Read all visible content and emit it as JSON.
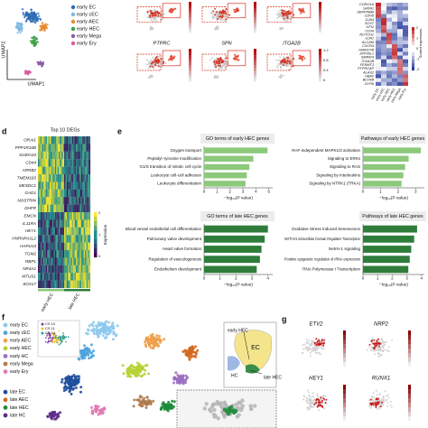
{
  "panels": {
    "a": {
      "legend": [
        {
          "name": "early EC",
          "color": "#2f6db5"
        },
        {
          "name": "early cEC",
          "color": "#7ab8e6"
        },
        {
          "name": "early AEC",
          "color": "#e8892c"
        },
        {
          "name": "early HEC",
          "color": "#3ca24a"
        },
        {
          "name": "early Mega",
          "color": "#8d5aa6"
        },
        {
          "name": "early Ery",
          "color": "#d95b9c"
        }
      ],
      "x_label": "UMAP1",
      "y_label": "UMAP2"
    },
    "b": {
      "genes": [
        "PTPRC",
        "SPN",
        "ITGA2B"
      ],
      "colorbar_labels": [
        "1.2",
        "0.8",
        "0.4",
        "0"
      ]
    },
    "c": {
      "genes": [
        "CORO1A",
        "GATA1",
        "SERPINB9",
        "CDH5",
        "GJA4",
        "SOX7",
        "GFI1",
        "CD34",
        "NOTCH1",
        "GJA1",
        "ALCAM",
        "CXCR4",
        "FAM107B",
        "ZFP36L1",
        "SMIM24",
        "ITGA2B",
        "FERMT3",
        "PTPRCAP",
        "ALAS2",
        "HBA2",
        "BLVRB",
        "GYPA"
      ],
      "columns": [
        "early EC",
        "early cEC",
        "early AEC",
        "early HEC",
        "early Mega",
        "early Ery"
      ],
      "scale_label": "Scaled expression",
      "scale_ticks": [
        "2",
        "1",
        "0",
        "-1",
        "-2"
      ]
    },
    "d": {
      "letter": "d",
      "title": "Top 10 DEGs",
      "genes": [
        "ORAI1",
        "PPP1R16B",
        "S100A10",
        "CD44",
        "ARRB2",
        "TMEM163",
        "MESDC1",
        "GAD1",
        "NOSTRIN",
        "DHFR",
        "EMCN",
        "IL11RA",
        "HEY1",
        "HNRNPA1L2",
        "HAPLN3",
        "TGM2",
        "RBP1",
        "NR4A1",
        "MTUS1",
        "SOX17"
      ],
      "groups": [
        "early HEC",
        "late HEC"
      ],
      "scale_label": "Expression",
      "scale_ticks": [
        "2",
        "1",
        "0"
      ]
    },
    "e": {
      "letter": "e"
    },
    "f": {
      "letter": "f",
      "legend": [
        {
          "name": "early EC",
          "color": "#8ec9ee"
        },
        {
          "name": "early cEC",
          "color": "#4da3dd"
        },
        {
          "name": "early AEC",
          "color": "#f0a04b"
        },
        {
          "name": "early HEC",
          "color": "#b5d334"
        },
        {
          "name": "early HC",
          "color": "#9b6fc0"
        },
        {
          "name": "early Mega",
          "color": "#b07a4f"
        },
        {
          "name": "early Ery",
          "color": "#e07bb5"
        },
        {
          "name": "late EC",
          "color": "#1f4e9c"
        },
        {
          "name": "late AEC",
          "color": "#d2691e"
        },
        {
          "name": "late HEC",
          "color": "#1e8a3c"
        },
        {
          "name": "late HC",
          "color": "#5b2d8a"
        }
      ],
      "inset_legend": [
        {
          "name": "CS 10",
          "color": "#7b3fa0"
        },
        {
          "name": "CS 11",
          "color": "#f2c12e"
        },
        {
          "name": "CS 13",
          "color": "#2e9e8f"
        }
      ],
      "schematic": [
        "early HEC",
        "EC",
        "HC",
        "late HEC"
      ]
    },
    "g": {
      "letter": "g",
      "genes": [
        "ETV2",
        "NRP2",
        "HEY1",
        "RUNX1"
      ]
    }
  },
  "chart_data": [
    {
      "type": "bar",
      "orientation": "horizontal",
      "title": "GO terms of early HEC genes",
      "categories": [
        "Oxygen transport",
        "Peptidyl−tyrosine modification",
        "G1/S transition of mitotic cell cycle",
        "Leukocyte cell-cell adhesion",
        "Leukocyte differentiation"
      ],
      "values": [
        4.9,
        3.8,
        3.5,
        3.3,
        3.2
      ],
      "color": "#8cc97a",
      "xlim": [
        0,
        5.3
      ],
      "xticks": [
        0,
        1,
        2,
        3,
        4,
        5
      ],
      "xlabel": "−log₁₀(P value)"
    },
    {
      "type": "bar",
      "orientation": "horizontal",
      "title": "Pathways of early HEC genes",
      "categories": [
        "RAF-independent MAPK1/3 activation",
        "Signaling to ERKs",
        "Signaling to RAS",
        "Signaling by Interleukins",
        "Signaling by NTRK1 (TRKA)"
      ],
      "values": [
        3.3,
        2.6,
        2.4,
        2.3,
        2.2
      ],
      "color": "#8cc97a",
      "xlim": [
        0,
        3.5
      ],
      "xticks": [
        0,
        1,
        2,
        3
      ],
      "xlabel": "−log₁₀(P value)"
    },
    {
      "type": "bar",
      "orientation": "horizontal",
      "title": "GO terms of late HEC genes",
      "categories": [
        "Blood vessel endothelial cell differentiation",
        "Pulmonary valve development",
        "Heart valve formation",
        "Regulation of vasculogenesis",
        "Endothelium development"
      ],
      "values": [
        4.0,
        3.8,
        3.6,
        3.5,
        3.3
      ],
      "color": "#2e7d3a",
      "xlim": [
        0,
        4.3
      ],
      "xticks": [
        0,
        1,
        2,
        3,
        4
      ],
      "xlabel": "−log₁₀(P value)"
    },
    {
      "type": "bar",
      "orientation": "horizontal",
      "title": "Pathways of late HEC genes",
      "categories": [
        "Oxidative Stress Induced Senescence",
        "NOTCH1 Intracellular Domain Regulates Transcription",
        "Netrin-1 signaling",
        "Positive epigenetic regulation of rRNA expression",
        "RNA Polymerase I Transcription"
      ],
      "values": [
        3.7,
        3.5,
        3.3,
        3.2,
        3.1
      ],
      "color": "#2e7d3a",
      "xlim": [
        0,
        4.2
      ],
      "xticks": [
        0,
        1,
        2,
        3,
        4
      ],
      "xlabel": "−log₁₀(P value)"
    }
  ]
}
